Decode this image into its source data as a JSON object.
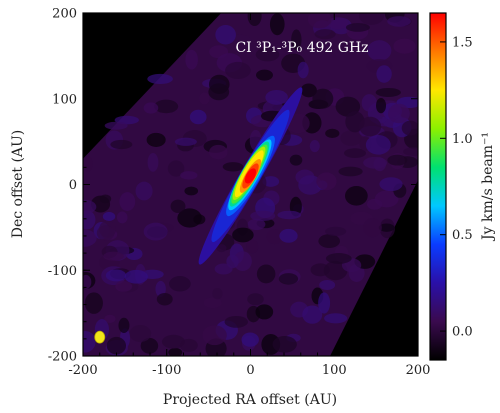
{
  "chart_data": {
    "type": "heatmap",
    "title": "",
    "annotation": {
      "line_label": "CI ³P₁-³P₀ 492 GHz"
    },
    "xlabel": "Projected RA offset (AU)",
    "ylabel": "Dec offset (AU)",
    "xlim": [
      -200,
      200
    ],
    "ylim": [
      -200,
      200
    ],
    "x_ticks": [
      -200,
      -100,
      0,
      100,
      200
    ],
    "y_ticks": [
      -200,
      -100,
      0,
      100,
      200
    ],
    "x_tick_labels": [
      "-200",
      "-100",
      "0",
      "100",
      "200"
    ],
    "y_tick_labels": [
      "-200",
      "-100",
      "0",
      "100",
      "200"
    ],
    "colorbar": {
      "label": "Jy km/s beam⁻¹",
      "range": [
        -0.15,
        1.65
      ],
      "ticks": [
        0.0,
        0.5,
        1.0,
        1.5
      ],
      "tick_labels": [
        "0.0",
        "0.5",
        "1.0",
        "1.5"
      ],
      "colors": [
        "#000000",
        "#3a0a4e",
        "#2a10a8",
        "#0a3cff",
        "#00c8ff",
        "#00e070",
        "#8cf000",
        "#ffe800",
        "#ff7800",
        "#ff0000"
      ]
    },
    "observed_region": {
      "vertices_au": [
        [
          -35,
          200
        ],
        [
          200,
          200
        ],
        [
          200,
          5
        ],
        [
          95,
          -200
        ],
        [
          -200,
          -200
        ],
        [
          -200,
          30
        ]
      ],
      "background_level": 0.02
    },
    "emission": {
      "center_au": [
        0,
        10
      ],
      "position_angle_deg": 30,
      "major_extent_au": [
        -190,
        145
      ],
      "peak_value": 1.62,
      "secondary_peak": {
        "offset_along_major_au": 22,
        "value": 1.3
      }
    },
    "beam": {
      "center_au": [
        -180,
        -178
      ],
      "major_au": 14,
      "minor_au": 12,
      "color": "#f2e51a"
    },
    "grid": false,
    "legend": "none"
  }
}
